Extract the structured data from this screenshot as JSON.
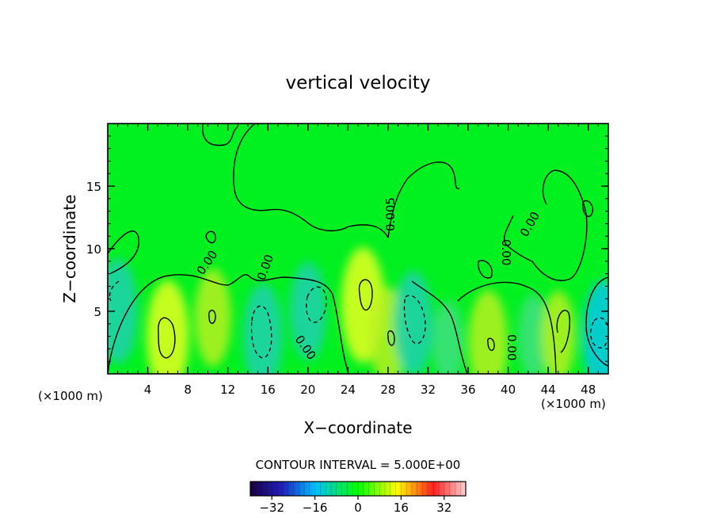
{
  "chart_data": {
    "type": "heatmap",
    "title": "vertical velocity",
    "xlabel": "X−coordinate",
    "ylabel": "Z−coordinate",
    "x_unit_left": "(×1000 m)",
    "x_unit_right": "(×1000 m)",
    "xlim": [
      0,
      50
    ],
    "ylim": [
      0,
      20
    ],
    "x_ticks": [
      4,
      8,
      12,
      16,
      20,
      24,
      28,
      32,
      36,
      40,
      44,
      48
    ],
    "y_ticks": [
      5,
      10,
      15
    ],
    "contour_interval_label": "CONTOUR INTERVAL = 5.000E+00",
    "contour_labels": [
      "0.00",
      "0.00",
      "0.00",
      "0.005",
      "0.00",
      "0.00",
      "0.00"
    ],
    "colorbar": {
      "ticks": [
        -32,
        -16,
        0,
        16,
        32
      ],
      "range": [
        -40,
        40
      ],
      "colors": [
        "#1a0040",
        "#00c0ff",
        "#00ff00",
        "#ffff00",
        "#ff2020",
        "#ffd0d0"
      ]
    },
    "features": [
      {
        "x": 6.0,
        "z": 3.0,
        "w": 14,
        "kind": "updraft"
      },
      {
        "x": 10.5,
        "z": 4.5,
        "w": 10,
        "kind": "updraft"
      },
      {
        "x": 15.5,
        "z": 3.0,
        "w": -12,
        "kind": "downdraft"
      },
      {
        "x": 20.0,
        "z": 5.0,
        "w": -10,
        "kind": "downdraft"
      },
      {
        "x": 25.5,
        "z": 5.5,
        "w": 15,
        "kind": "updraft"
      },
      {
        "x": 28.0,
        "z": 3.0,
        "w": 10,
        "kind": "updraft"
      },
      {
        "x": 30.5,
        "z": 4.0,
        "w": -12,
        "kind": "downdraft"
      },
      {
        "x": 34.0,
        "z": 2.5,
        "w": -6,
        "kind": "downdraft"
      },
      {
        "x": 38.0,
        "z": 2.5,
        "w": 12,
        "kind": "updraft"
      },
      {
        "x": 42.5,
        "z": 3.0,
        "w": -6,
        "kind": "downdraft"
      },
      {
        "x": 45.0,
        "z": 3.0,
        "w": 8,
        "kind": "updraft"
      },
      {
        "x": 49.5,
        "z": 3.0,
        "w": -14,
        "kind": "downdraft"
      },
      {
        "x": 1.0,
        "z": 5.0,
        "w": -12,
        "kind": "downdraft"
      }
    ]
  }
}
